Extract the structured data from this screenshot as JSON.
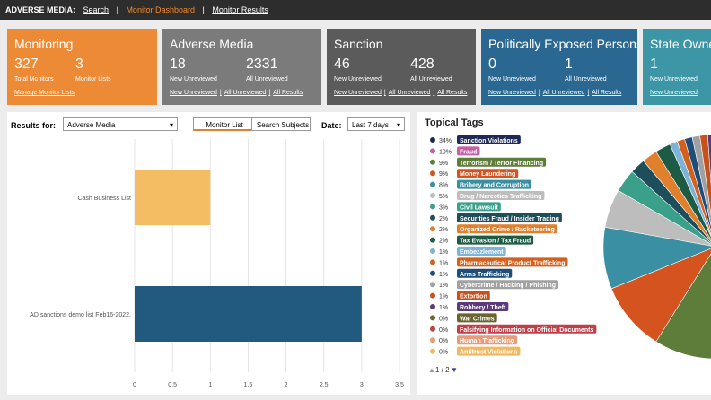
{
  "header": {
    "title": "ADVERSE MEDIA:",
    "links": [
      "Search",
      "Monitor Dashboard",
      "Monitor Results"
    ],
    "separator": "|"
  },
  "cards": [
    {
      "title": "Monitoring",
      "color": "#ec8a35",
      "stats": [
        {
          "value": "327",
          "label": "Total Monitors"
        },
        {
          "value": "3",
          "label": "Monitor Lists"
        }
      ],
      "links": [
        "Manage Monitor Lists"
      ]
    },
    {
      "title": "Adverse Media",
      "color": "#7b7b7b",
      "stats": [
        {
          "value": "18",
          "label": "New Unreviewed"
        },
        {
          "value": "2331",
          "label": "All Unreviewed"
        }
      ],
      "links": [
        "New Unreviewed",
        "All Unreviewed",
        "All Results"
      ]
    },
    {
      "title": "Sanction",
      "color": "#5b5b5b",
      "stats": [
        {
          "value": "46",
          "label": "New Unreviewed"
        },
        {
          "value": "428",
          "label": "All Unreviewed"
        }
      ],
      "links": [
        "New Unreviewed",
        "All Unreviewed",
        "All Results"
      ]
    },
    {
      "title": "Politically Exposed Persons",
      "color": "#2a6892",
      "stats": [
        {
          "value": "0",
          "label": "New Unreviewed"
        },
        {
          "value": "1",
          "label": "All Unreviewed"
        }
      ],
      "links": [
        "New Unreviewed",
        "All Unreviewed",
        "All Results"
      ]
    },
    {
      "title": "State Owned",
      "color": "#3d96a6",
      "stats": [
        {
          "value": "1",
          "label": "New Unreviewed"
        }
      ],
      "links": [
        "New Unreviewed"
      ]
    }
  ],
  "filters": {
    "results_for_label": "Results for:",
    "results_for": "Adverse Media",
    "tabs": [
      "Monitor List",
      "Search Subjects"
    ],
    "date_label": "Date:",
    "date": "Last 7 days"
  },
  "bar_chart": {
    "type": "bar",
    "orientation": "horizontal",
    "categories": [
      "Cash Business List",
      "AD sanctions demo list Feb16-2022."
    ],
    "values": [
      1,
      3
    ],
    "colors": [
      "#f5bd63",
      "#215a7e"
    ],
    "xlim": [
      0,
      3.5
    ],
    "xticks": [
      0,
      0.5,
      1,
      1.5,
      2,
      2.5,
      3,
      3.5
    ],
    "grid": true
  },
  "topical_tags": {
    "title": "Topical Tags",
    "type": "pie",
    "categories": [
      "Sanction Violations",
      "Fraud",
      "Terrorism / Terror Financing",
      "Money Laundering",
      "Bribery and Corruption",
      "Drug / Narcotics Trafficking",
      "Civil Lawsuit",
      "Securities Fraud / Insider Trading",
      "Organized Crime / Racketeering",
      "Tax Evasion / Tax Fraud",
      "Embezzlement",
      "Pharmaceutical Product Trafficking",
      "Arms Trafficking",
      "Cybercrime / Hacking / Phishing",
      "Extortion",
      "Robbery / Theft",
      "War Crimes",
      "Falsifying Information on Official Documents",
      "Human Trafficking",
      "Antitrust Violations"
    ],
    "values": [
      34,
      10,
      9,
      9,
      8,
      5,
      3,
      2,
      2,
      2,
      1,
      1,
      1,
      1,
      1,
      1,
      0,
      0,
      0,
      0
    ],
    "value_labels": [
      "34%",
      "10%",
      "9%",
      "9%",
      "8%",
      "5%",
      "3%",
      "2%",
      "2%",
      "2%",
      "1%",
      "1%",
      "1%",
      "1%",
      "1%",
      "1%",
      "0%",
      "0%",
      "0%",
      "0%"
    ],
    "colors": [
      "#1e2a55",
      "#c55fa8",
      "#5e7c3a",
      "#d4531e",
      "#3a8fa3",
      "#bdbdbd",
      "#3aa08a",
      "#1e4d5c",
      "#e07f2c",
      "#1d5b45",
      "#7eb3d9",
      "#d2601f",
      "#1e4d7a",
      "#a0a0a0",
      "#c8501a",
      "#5a3a7a",
      "#6a6530",
      "#c0404a",
      "#e89a7a",
      "#f0b860"
    ],
    "pager": "1 / 2"
  }
}
